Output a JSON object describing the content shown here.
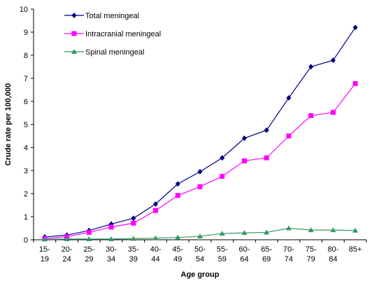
{
  "chart_data": {
    "type": "line",
    "title": "",
    "xlabel": "Age group",
    "ylabel": "Crude rate per 100,000",
    "ylim": [
      0,
      10
    ],
    "y_ticks": [
      "0",
      "1",
      "2",
      "3",
      "4",
      "5",
      "6",
      "7",
      "8",
      "9",
      "10"
    ],
    "grid": false,
    "legend_position": "top-left",
    "categories": [
      [
        "15-",
        "19"
      ],
      [
        "20-",
        "24"
      ],
      [
        "25-",
        "29"
      ],
      [
        "30-",
        "34"
      ],
      [
        "35-",
        "39"
      ],
      [
        "40-",
        "44"
      ],
      [
        "45-",
        "49"
      ],
      [
        "50-",
        "54"
      ],
      [
        "55-",
        "59"
      ],
      [
        "60-",
        "64"
      ],
      [
        "65-",
        "69"
      ],
      [
        "70-",
        "74"
      ],
      [
        "75-",
        "79"
      ],
      [
        "80-",
        "84"
      ],
      [
        "85+",
        ""
      ]
    ],
    "series": [
      {
        "name": "Total meningeal",
        "color": "#000080",
        "marker": "diamond",
        "values": [
          0.12,
          0.2,
          0.4,
          0.68,
          0.93,
          1.55,
          2.42,
          2.95,
          3.55,
          4.4,
          4.75,
          6.15,
          7.5,
          7.78,
          9.2
        ]
      },
      {
        "name": "Intracranial meningeal",
        "color": "#FF00FF",
        "marker": "square",
        "values": [
          0.05,
          0.13,
          0.32,
          0.55,
          0.72,
          1.27,
          1.92,
          2.3,
          2.75,
          3.42,
          3.55,
          4.5,
          5.38,
          5.52,
          6.77
        ]
      },
      {
        "name": "Spinal meningeal",
        "color": "#339966",
        "marker": "triangle",
        "values": [
          0.02,
          0.03,
          0.03,
          0.03,
          0.05,
          0.07,
          0.1,
          0.15,
          0.27,
          0.3,
          0.32,
          0.5,
          0.42,
          0.42,
          0.4
        ]
      }
    ]
  }
}
